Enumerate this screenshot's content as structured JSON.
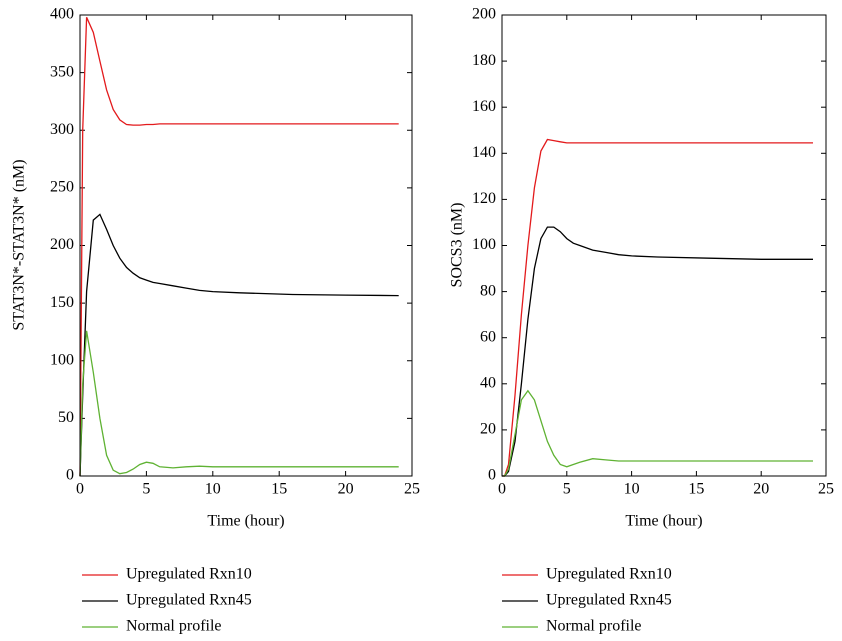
{
  "chart_data": [
    {
      "type": "line",
      "x_label": "Time (hour)",
      "y_label": "STAT3N*-STAT3N* (nM)",
      "x": [
        0,
        0.2,
        0.5,
        1,
        1.5,
        2,
        2.5,
        3,
        3.5,
        4,
        4.5,
        5,
        5.5,
        6,
        7,
        8,
        9,
        10,
        12,
        16,
        20,
        24
      ],
      "xlim": [
        0,
        25
      ],
      "xticks": [
        0,
        5,
        10,
        15,
        20,
        25
      ],
      "ylim": [
        0,
        400
      ],
      "yticks": [
        0,
        50,
        100,
        150,
        200,
        250,
        300,
        350,
        400
      ],
      "series": [
        {
          "name": "Upregulated Rxn10",
          "color": "#e31a1c",
          "values": [
            0,
            300,
            398,
            385,
            360,
            335,
            318,
            309,
            305,
            304.5,
            304.5,
            305,
            305,
            305.5,
            305.5,
            305.5,
            305.5,
            305.5,
            305.5,
            305.5,
            305.5,
            305.5
          ]
        },
        {
          "name": "Upregulated Rxn45",
          "color": "#000000",
          "values": [
            0,
            70,
            160,
            222,
            227,
            214,
            200,
            189,
            181,
            176,
            172,
            170,
            168,
            167,
            165,
            163,
            161,
            160,
            159,
            157.5,
            157,
            156.5
          ]
        },
        {
          "name": "Normal profile",
          "color": "#5fb233",
          "values": [
            0,
            80,
            126,
            90,
            50,
            18,
            5,
            2,
            3,
            6,
            10,
            12,
            11,
            8,
            7,
            8,
            8.5,
            8,
            8,
            8,
            8,
            8
          ]
        }
      ]
    },
    {
      "type": "line",
      "x_label": "Time (hour)",
      "y_label": "SOCS3 (nM)",
      "x": [
        0,
        0.2,
        0.5,
        1,
        1.5,
        2,
        2.5,
        3,
        3.5,
        4,
        4.5,
        5,
        5.5,
        6,
        7,
        8,
        9,
        10,
        12,
        16,
        20,
        24
      ],
      "xlim": [
        0,
        25
      ],
      "xticks": [
        0,
        5,
        10,
        15,
        20,
        25
      ],
      "ylim": [
        0,
        200
      ],
      "yticks": [
        0,
        20,
        40,
        60,
        80,
        100,
        120,
        140,
        160,
        180,
        200
      ],
      "series": [
        {
          "name": "Upregulated Rxn10",
          "color": "#e31a1c",
          "values": [
            0,
            0,
            5,
            35,
            70,
            100,
            125,
            141,
            146,
            145.5,
            145,
            144.5,
            144.5,
            144.5,
            144.5,
            144.5,
            144.5,
            144.5,
            144.5,
            144.5,
            144.5,
            144.5
          ]
        },
        {
          "name": "Upregulated Rxn45",
          "color": "#000000",
          "values": [
            0,
            0,
            2,
            15,
            40,
            68,
            90,
            103,
            108,
            108,
            106,
            103,
            101,
            100,
            98,
            97,
            96,
            95.5,
            95,
            94.5,
            94,
            94
          ]
        },
        {
          "name": "Normal profile",
          "color": "#5fb233",
          "values": [
            0,
            0,
            3,
            18,
            33,
            37,
            33,
            24,
            15,
            9,
            5,
            4,
            5,
            6,
            7.5,
            7,
            6.5,
            6.5,
            6.5,
            6.5,
            6.5,
            6.5
          ]
        }
      ]
    }
  ]
}
